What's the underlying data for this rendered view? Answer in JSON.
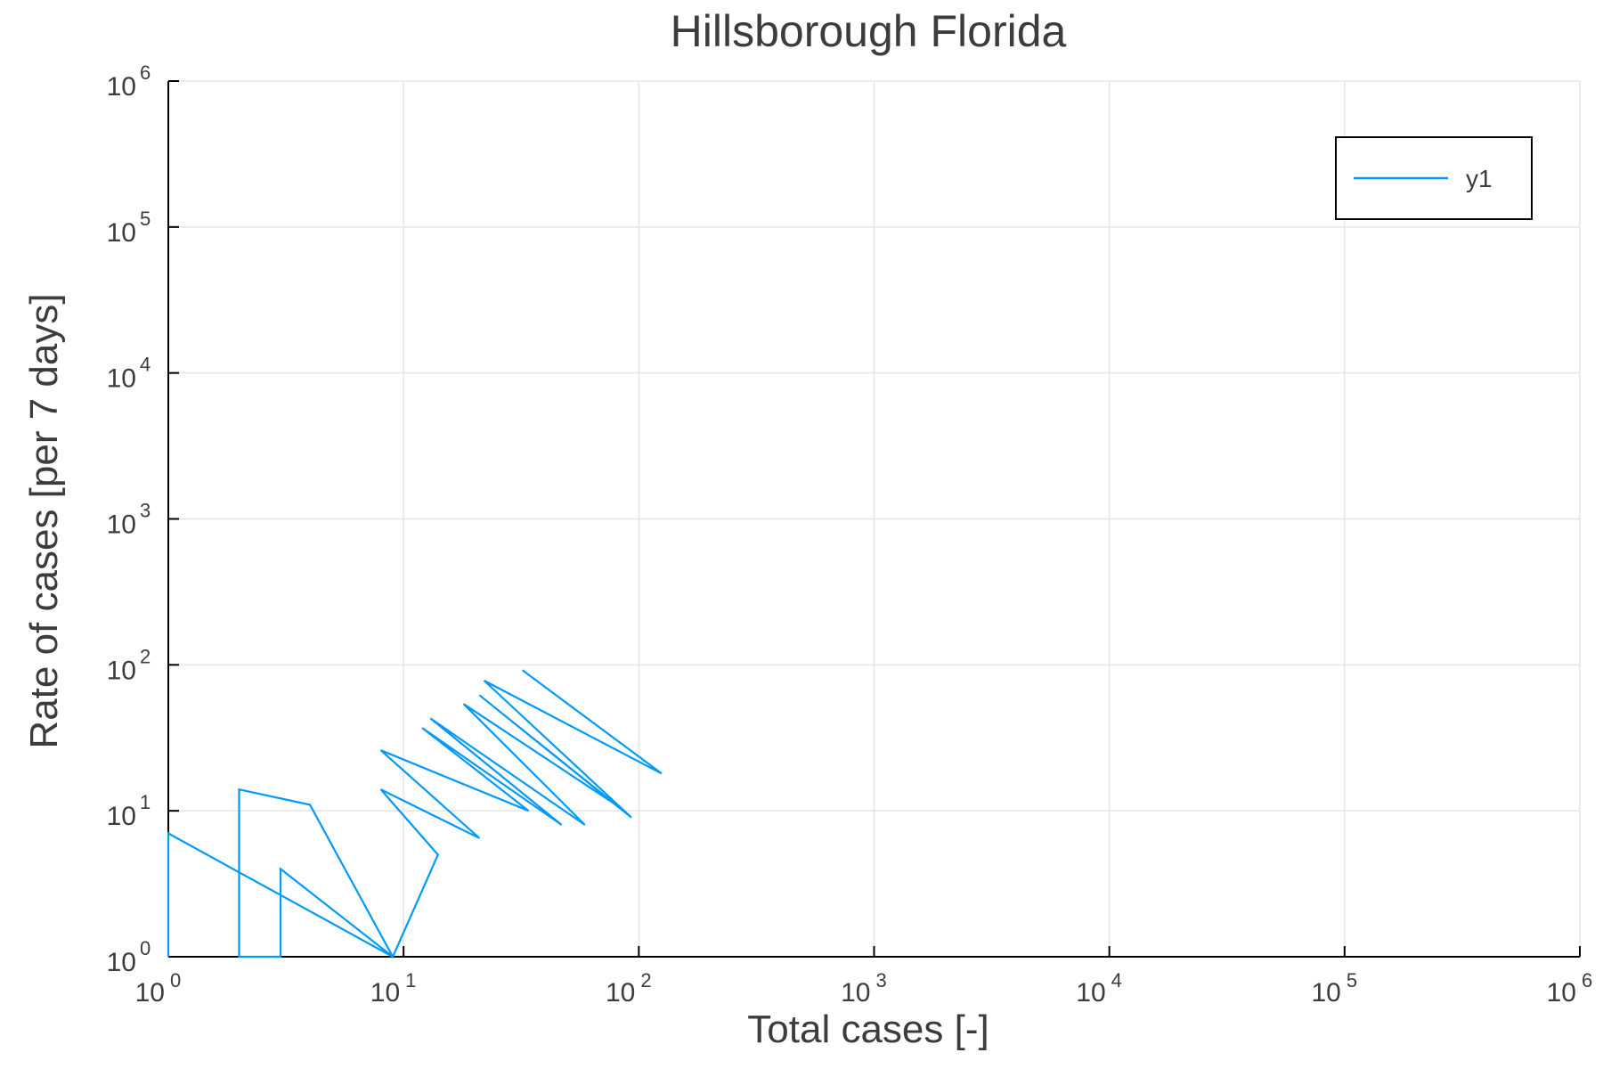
{
  "chart_data": {
    "type": "line",
    "title": "Hillsborough Florida",
    "xlabel": "Total cases [-]",
    "ylabel": "Rate of cases [per 7 days]",
    "xscale": "log",
    "yscale": "log",
    "xlim": [
      1,
      1000000
    ],
    "ylim": [
      1,
      1000000
    ],
    "grid": true,
    "legend_position": "top-right",
    "x_ticks": [
      {
        "value": 1,
        "base": "10",
        "exp": "0"
      },
      {
        "value": 10,
        "base": "10",
        "exp": "1"
      },
      {
        "value": 100,
        "base": "10",
        "exp": "2"
      },
      {
        "value": 1000,
        "base": "10",
        "exp": "3"
      },
      {
        "value": 10000,
        "base": "10",
        "exp": "4"
      },
      {
        "value": 100000,
        "base": "10",
        "exp": "5"
      },
      {
        "value": 1000000,
        "base": "10",
        "exp": "6"
      }
    ],
    "y_ticks": [
      {
        "value": 1,
        "base": "10",
        "exp": "0"
      },
      {
        "value": 10,
        "base": "10",
        "exp": "1"
      },
      {
        "value": 100,
        "base": "10",
        "exp": "2"
      },
      {
        "value": 1000,
        "base": "10",
        "exp": "3"
      },
      {
        "value": 10000,
        "base": "10",
        "exp": "4"
      },
      {
        "value": 100000,
        "base": "10",
        "exp": "5"
      },
      {
        "value": 1000000,
        "base": "10",
        "exp": "6"
      }
    ],
    "series": [
      {
        "name": "y1",
        "color": "#009af9",
        "x": [
          1,
          1,
          1,
          9,
          3,
          3,
          2,
          2,
          4,
          9,
          14,
          8,
          21,
          8,
          34,
          12,
          47,
          13,
          59,
          18,
          80,
          21,
          93,
          22,
          125,
          32
        ],
        "y": [
          1,
          1,
          7,
          1,
          4,
          1,
          1,
          14,
          11,
          1,
          5,
          14,
          6.5,
          26,
          10,
          37,
          8,
          43,
          8,
          54,
          11,
          62,
          9,
          78,
          18,
          92
        ]
      }
    ]
  }
}
